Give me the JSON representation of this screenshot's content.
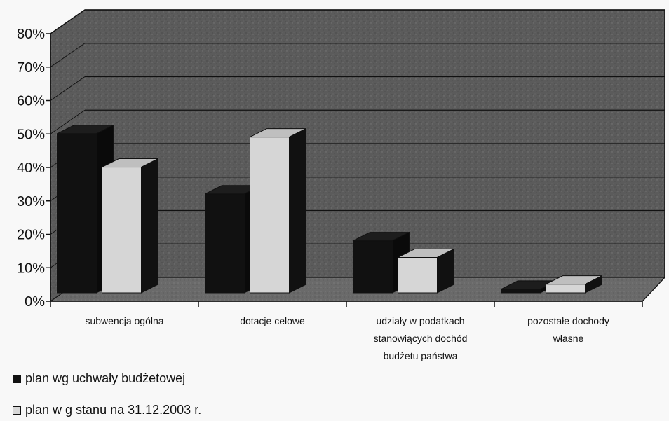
{
  "chart_data": {
    "type": "bar",
    "categories": [
      [
        "subwencja ogólna"
      ],
      [
        "dotacje celowe"
      ],
      [
        "udziały w podatkach",
        "stanowiących dochód",
        "budżetu państwa"
      ],
      [
        "pozostałe dochody",
        "własne"
      ]
    ],
    "series": [
      {
        "name": "plan wg uchwały budżetowej",
        "color": "#111111",
        "values": [
          48,
          30,
          16,
          1.5
        ]
      },
      {
        "name": "plan w g stanu na 31.12.2003 r.",
        "color": "#d8d8d8",
        "values": [
          38,
          47,
          11,
          3
        ]
      }
    ],
    "ylim": [
      0,
      80
    ],
    "yticks": [
      "0%",
      "10%",
      "20%",
      "30%",
      "40%",
      "50%",
      "60%",
      "70%",
      "80%"
    ],
    "grid": true,
    "legend_position": "bottom-left"
  }
}
